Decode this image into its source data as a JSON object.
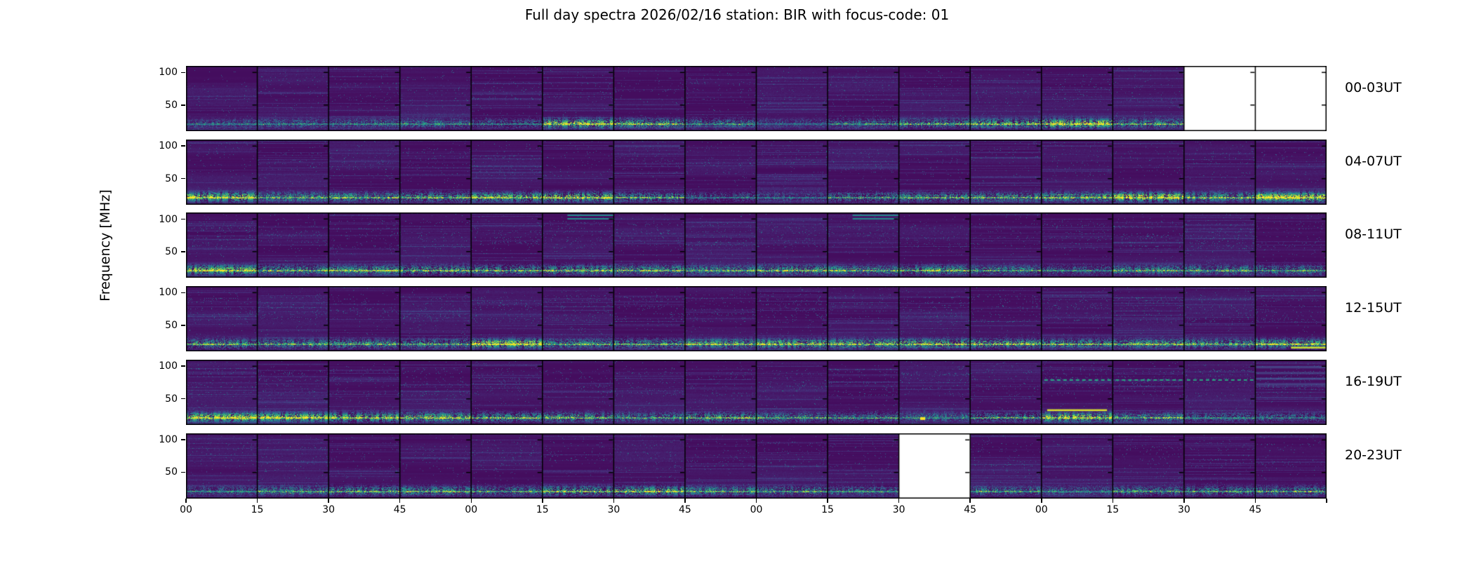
{
  "chart_data": {
    "type": "heatmap",
    "subtype": "radio-spectrogram-grid",
    "title": "Full day spectra 2026/02/16 station: BIR with focus-code: 01",
    "ylabel": "Frequency [MHz]",
    "xlabel": "",
    "colormap": "viridis",
    "palette": [
      "#440154",
      "#46327e",
      "#365c8d",
      "#277f8e",
      "#1fa187",
      "#4ac16d",
      "#a0da39",
      "#fde725"
    ],
    "background_color": "#ffffff",
    "missing_data_color": "#ffffff",
    "freq_axis": {
      "tick_labels": [
        "100",
        "50"
      ],
      "tick_values_mhz": [
        100,
        50
      ],
      "range_mhz": [
        10,
        110
      ]
    },
    "time_axis": {
      "tick_labels": [
        "00",
        "15",
        "30",
        "45",
        "00",
        "15",
        "30",
        "45",
        "00",
        "15",
        "30",
        "45",
        "00",
        "15",
        "30",
        "45"
      ],
      "minutes_per_panel": 15,
      "panels_per_row": 16,
      "hours_per_row": 4
    },
    "legend": "none",
    "grid": "off",
    "rows": [
      {
        "label": "00-03UT",
        "missing_panels": [
          14,
          15
        ],
        "missing_times": [
          "03:30-04:00 UT"
        ],
        "mid_band_density": 0.3,
        "activity": [
          0.25,
          0.3,
          0.3,
          0.35,
          0.3,
          0.8,
          0.6,
          0.4,
          0.2,
          0.35,
          0.5,
          0.65,
          0.9,
          0.5,
          0,
          0
        ],
        "features": []
      },
      {
        "label": "04-07UT",
        "missing_panels": [],
        "missing_times": [],
        "mid_band_density": 0.35,
        "activity": [
          0.85,
          0.5,
          0.55,
          0.6,
          0.7,
          0.8,
          0.5,
          0.3,
          0.25,
          0.45,
          0.5,
          0.55,
          0.65,
          0.95,
          0.6,
          0.95
        ],
        "features": []
      },
      {
        "label": "08-11UT",
        "missing_panels": [],
        "missing_times": [],
        "mid_band_density": 0.55,
        "activity": [
          0.8,
          0.55,
          0.6,
          0.6,
          0.55,
          0.6,
          0.6,
          0.5,
          0.6,
          0.5,
          0.6,
          0.45,
          0.35,
          0.5,
          0.5,
          0.45
        ],
        "features": [
          {
            "type": "top-streak",
            "panel": 5
          },
          {
            "type": "top-streak",
            "panel": 9
          }
        ]
      },
      {
        "label": "12-15UT",
        "missing_panels": [],
        "missing_times": [],
        "mid_band_density": 0.6,
        "activity": [
          0.55,
          0.5,
          0.5,
          0.5,
          0.9,
          0.5,
          0.5,
          0.6,
          0.7,
          0.65,
          0.7,
          0.65,
          0.55,
          0.6,
          0.55,
          0.7
        ],
        "features": [
          {
            "type": "bright-line",
            "panel": 15,
            "yf": 0.93,
            "x0": 0.5,
            "x1": 1.0,
            "t": 0.92
          }
        ]
      },
      {
        "label": "16-19UT",
        "missing_panels": [],
        "missing_times": [],
        "mid_band_density": 0.55,
        "activity": [
          0.85,
          0.8,
          0.75,
          0.7,
          0.55,
          0.6,
          0.45,
          0.6,
          0.45,
          0.4,
          0.35,
          0.45,
          0.8,
          0.5,
          0.3,
          0.3
        ],
        "features": [
          {
            "type": "dotted-line",
            "panels": [
              12,
              13,
              14
            ],
            "yf": 0.3
          },
          {
            "type": "bright-line",
            "panel": 12,
            "yf": 0.76,
            "x0": 0.08,
            "x1": 0.92,
            "t": 0.95
          },
          {
            "type": "blob",
            "panel": 10,
            "xf": 0.3,
            "yf": 0.88,
            "t": 1.0
          },
          {
            "type": "light-bands",
            "panel": 15,
            "yf0": 0.1,
            "yf1": 0.45
          }
        ]
      },
      {
        "label": "20-23UT",
        "missing_panels": [
          10
        ],
        "missing_times": [
          "22:30-22:45 UT"
        ],
        "mid_band_density": 0.35,
        "activity": [
          0.3,
          0.45,
          0.5,
          0.55,
          0.45,
          0.65,
          0.7,
          0.5,
          0.45,
          0.35,
          0,
          0.4,
          0.3,
          0.45,
          0.45,
          0.5
        ],
        "features": []
      }
    ]
  }
}
